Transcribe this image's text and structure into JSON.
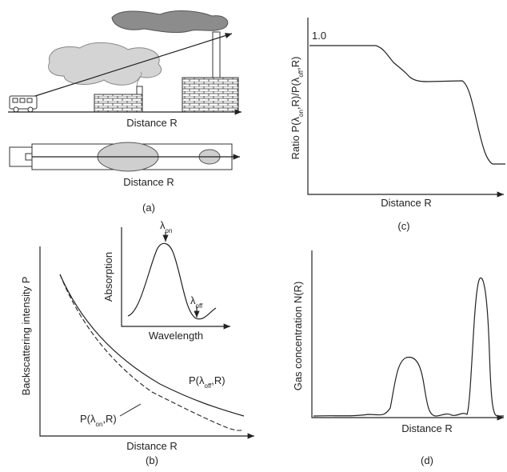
{
  "panel_a": {
    "distance_top": "Distance R",
    "distance_bottom": "Distance R",
    "caption": "(a)"
  },
  "panel_b": {
    "y_label": "Backscattering intensity P",
    "inset": {
      "y_label": "Absorption",
      "x_label": "Wavelength",
      "lambda_on": [
        "λ",
        "on"
      ],
      "lambda_off": [
        "λ",
        "off"
      ]
    },
    "curve_off_label": [
      "P(λ",
      "off",
      ",R)"
    ],
    "curve_on_label": [
      "P(λ",
      "on",
      ",R)"
    ],
    "x_label": "Distance R",
    "caption": "(b)"
  },
  "panel_c": {
    "level_label": "1.0",
    "y_label": [
      "Ratio P(λ",
      "on",
      ",R)/P(λ",
      "off",
      ",R)"
    ],
    "x_label": "Distance R",
    "caption": "(c)"
  },
  "panel_d": {
    "y_label": "Gas concentration N(R)",
    "x_label": "Distance R",
    "caption": "(d)"
  }
}
